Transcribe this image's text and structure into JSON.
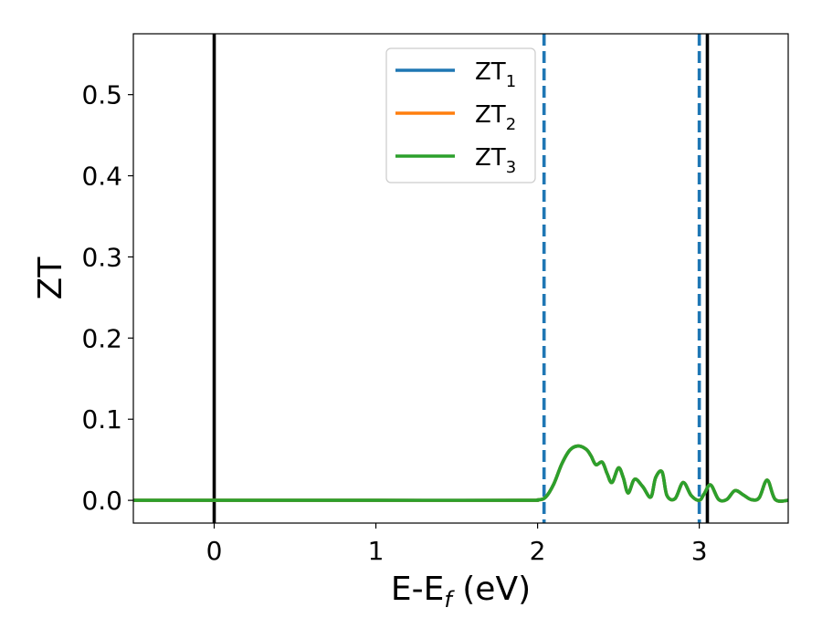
{
  "chart_data": {
    "type": "line",
    "xlabel": "E-E",
    "xlabel_sub": "f",
    "xlabel_unit": " (eV)",
    "ylabel": "ZT",
    "xlim": [
      -0.5,
      3.55
    ],
    "ylim": [
      -0.028,
      0.575
    ],
    "xticks": [
      0,
      1,
      2,
      3
    ],
    "xtick_labels": [
      "0",
      "1",
      "2",
      "3"
    ],
    "yticks": [
      0.0,
      0.1,
      0.2,
      0.3,
      0.4,
      0.5
    ],
    "ytick_labels": [
      "0.0",
      "0.1",
      "0.2",
      "0.3",
      "0.4",
      "0.5"
    ],
    "grid": false,
    "legend_position": "top-center",
    "vertical_lines": [
      {
        "x": 0.0,
        "style": "solid",
        "color": "#000000"
      },
      {
        "x": 3.05,
        "style": "solid",
        "color": "#000000"
      },
      {
        "x": 2.04,
        "style": "dashed",
        "color": "#1f77b4"
      },
      {
        "x": 3.0,
        "style": "dashed",
        "color": "#1f77b4"
      }
    ],
    "series": [
      {
        "name": "ZT",
        "sub": "1",
        "color": "#1f77b4",
        "x": [
          -0.5,
          0.0,
          1.0,
          1.9,
          2.0,
          2.05,
          2.1,
          2.15,
          2.2,
          2.25,
          2.3,
          2.33,
          2.36,
          2.4,
          2.43,
          2.46,
          2.5,
          2.53,
          2.56,
          2.6,
          2.65,
          2.7,
          2.73,
          2.77,
          2.8,
          2.85,
          2.9,
          2.95,
          3.0,
          3.03,
          3.07,
          3.12,
          3.17,
          3.22,
          3.27,
          3.32,
          3.37,
          3.42,
          3.47,
          3.55
        ],
        "y": [
          0.0,
          0.0,
          0.0,
          0.0,
          0.0005,
          0.004,
          0.02,
          0.045,
          0.062,
          0.067,
          0.063,
          0.055,
          0.044,
          0.047,
          0.033,
          0.022,
          0.04,
          0.028,
          0.009,
          0.026,
          0.017,
          0.004,
          0.028,
          0.035,
          0.006,
          0.002,
          0.022,
          0.006,
          0.0,
          0.008,
          0.019,
          0.001,
          0.001,
          0.012,
          0.007,
          0.001,
          0.003,
          0.025,
          0.001,
          0.0
        ]
      },
      {
        "name": "ZT",
        "sub": "2",
        "color": "#ff7f0e",
        "x": [
          -0.5,
          0.0,
          1.0,
          1.9,
          2.0,
          2.05,
          2.1,
          2.15,
          2.2,
          2.25,
          2.3,
          2.33,
          2.36,
          2.4,
          2.43,
          2.46,
          2.5,
          2.53,
          2.56,
          2.6,
          2.65,
          2.7,
          2.73,
          2.77,
          2.8,
          2.85,
          2.9,
          2.95,
          3.0,
          3.03,
          3.07,
          3.12,
          3.17,
          3.22,
          3.27,
          3.32,
          3.37,
          3.42,
          3.47,
          3.55
        ],
        "y": [
          0.0,
          0.0,
          0.0,
          0.0,
          0.0005,
          0.004,
          0.02,
          0.045,
          0.062,
          0.067,
          0.063,
          0.055,
          0.044,
          0.047,
          0.033,
          0.022,
          0.04,
          0.028,
          0.009,
          0.026,
          0.017,
          0.004,
          0.028,
          0.035,
          0.006,
          0.002,
          0.022,
          0.006,
          0.0,
          0.008,
          0.019,
          0.001,
          0.001,
          0.012,
          0.007,
          0.001,
          0.003,
          0.025,
          0.001,
          0.0
        ]
      },
      {
        "name": "ZT",
        "sub": "3",
        "color": "#2ca02c",
        "x": [
          -0.5,
          0.0,
          1.0,
          1.9,
          2.0,
          2.05,
          2.1,
          2.15,
          2.2,
          2.25,
          2.3,
          2.33,
          2.36,
          2.4,
          2.43,
          2.46,
          2.5,
          2.53,
          2.56,
          2.6,
          2.65,
          2.7,
          2.73,
          2.77,
          2.8,
          2.85,
          2.9,
          2.95,
          3.0,
          3.03,
          3.07,
          3.12,
          3.17,
          3.22,
          3.27,
          3.32,
          3.37,
          3.42,
          3.47,
          3.55
        ],
        "y": [
          0.0,
          0.0,
          0.0,
          0.0,
          0.0005,
          0.004,
          0.02,
          0.045,
          0.062,
          0.067,
          0.063,
          0.055,
          0.044,
          0.047,
          0.033,
          0.022,
          0.04,
          0.028,
          0.009,
          0.026,
          0.017,
          0.004,
          0.028,
          0.035,
          0.006,
          0.002,
          0.022,
          0.006,
          0.0,
          0.008,
          0.019,
          0.001,
          0.001,
          0.012,
          0.007,
          0.001,
          0.003,
          0.025,
          0.001,
          0.0
        ]
      }
    ]
  }
}
